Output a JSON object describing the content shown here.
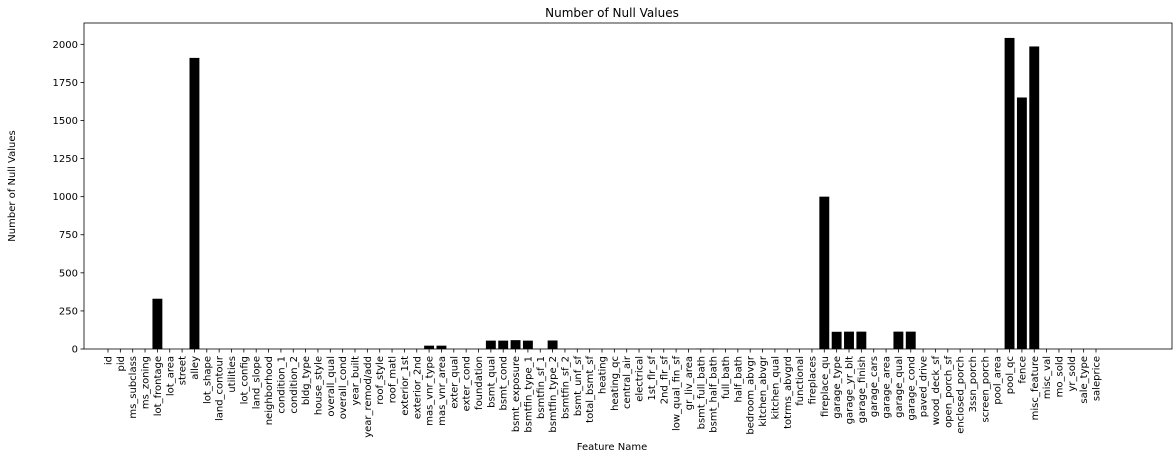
{
  "chart_data": {
    "type": "bar",
    "title": "Number of Null Values",
    "xlabel": "Feature Name",
    "ylabel": "Number of Null Values",
    "ylim": [
      0,
      2140
    ],
    "yticks": [
      0,
      250,
      500,
      750,
      1000,
      1250,
      1500,
      1750,
      2000
    ],
    "bar_color": "#000000",
    "grid": false,
    "categories": [
      "id",
      "pid",
      "ms_subclass",
      "ms_zoning",
      "lot_frontage",
      "lot_area",
      "street",
      "alley",
      "lot_shape",
      "land_contour",
      "utilities",
      "lot_config",
      "land_slope",
      "neighborhood",
      "condition_1",
      "condition_2",
      "bldg_type",
      "house_style",
      "overall_qual",
      "overall_cond",
      "year_built",
      "year_remod/add",
      "roof_style",
      "roof_matl",
      "exterior_1st",
      "exterior_2nd",
      "mas_vnr_type",
      "mas_vnr_area",
      "exter_qual",
      "exter_cond",
      "foundation",
      "bsmt_qual",
      "bsmt_cond",
      "bsmt_exposure",
      "bsmtfin_type_1",
      "bsmtfin_sf_1",
      "bsmtfin_type_2",
      "bsmtfin_sf_2",
      "bsmt_unf_sf",
      "total_bsmt_sf",
      "heating",
      "heating_qc",
      "central_air",
      "electrical",
      "1st_flr_sf",
      "2nd_flr_sf",
      "low_qual_fin_sf",
      "gr_liv_area",
      "bsmt_full_bath",
      "bsmt_half_bath",
      "full_bath",
      "half_bath",
      "bedroom_abvgr",
      "kitchen_abvgr",
      "kitchen_qual",
      "totrms_abvgrd",
      "functional",
      "fireplaces",
      "fireplace_qu",
      "garage_type",
      "garage_yr_blt",
      "garage_finish",
      "garage_cars",
      "garage_area",
      "garage_qual",
      "garage_cond",
      "paved_drive",
      "wood_deck_sf",
      "open_porch_sf",
      "enclosed_porch",
      "3ssn_porch",
      "screen_porch",
      "pool_area",
      "pool_qc",
      "fence",
      "misc_feature",
      "misc_val",
      "mo_sold",
      "yr_sold",
      "sale_type",
      "saleprice"
    ],
    "values": [
      0,
      0,
      0,
      0,
      330,
      0,
      0,
      1911,
      0,
      0,
      0,
      0,
      0,
      0,
      0,
      0,
      0,
      0,
      0,
      0,
      0,
      0,
      0,
      0,
      0,
      0,
      22,
      22,
      0,
      0,
      0,
      55,
      55,
      58,
      55,
      1,
      56,
      1,
      1,
      1,
      0,
      0,
      0,
      0,
      0,
      0,
      0,
      0,
      2,
      2,
      0,
      0,
      0,
      0,
      0,
      0,
      0,
      0,
      1000,
      113,
      114,
      114,
      1,
      1,
      114,
      114,
      0,
      0,
      0,
      0,
      0,
      0,
      0,
      2042,
      1651,
      1986,
      0,
      0,
      0,
      0,
      0
    ]
  }
}
